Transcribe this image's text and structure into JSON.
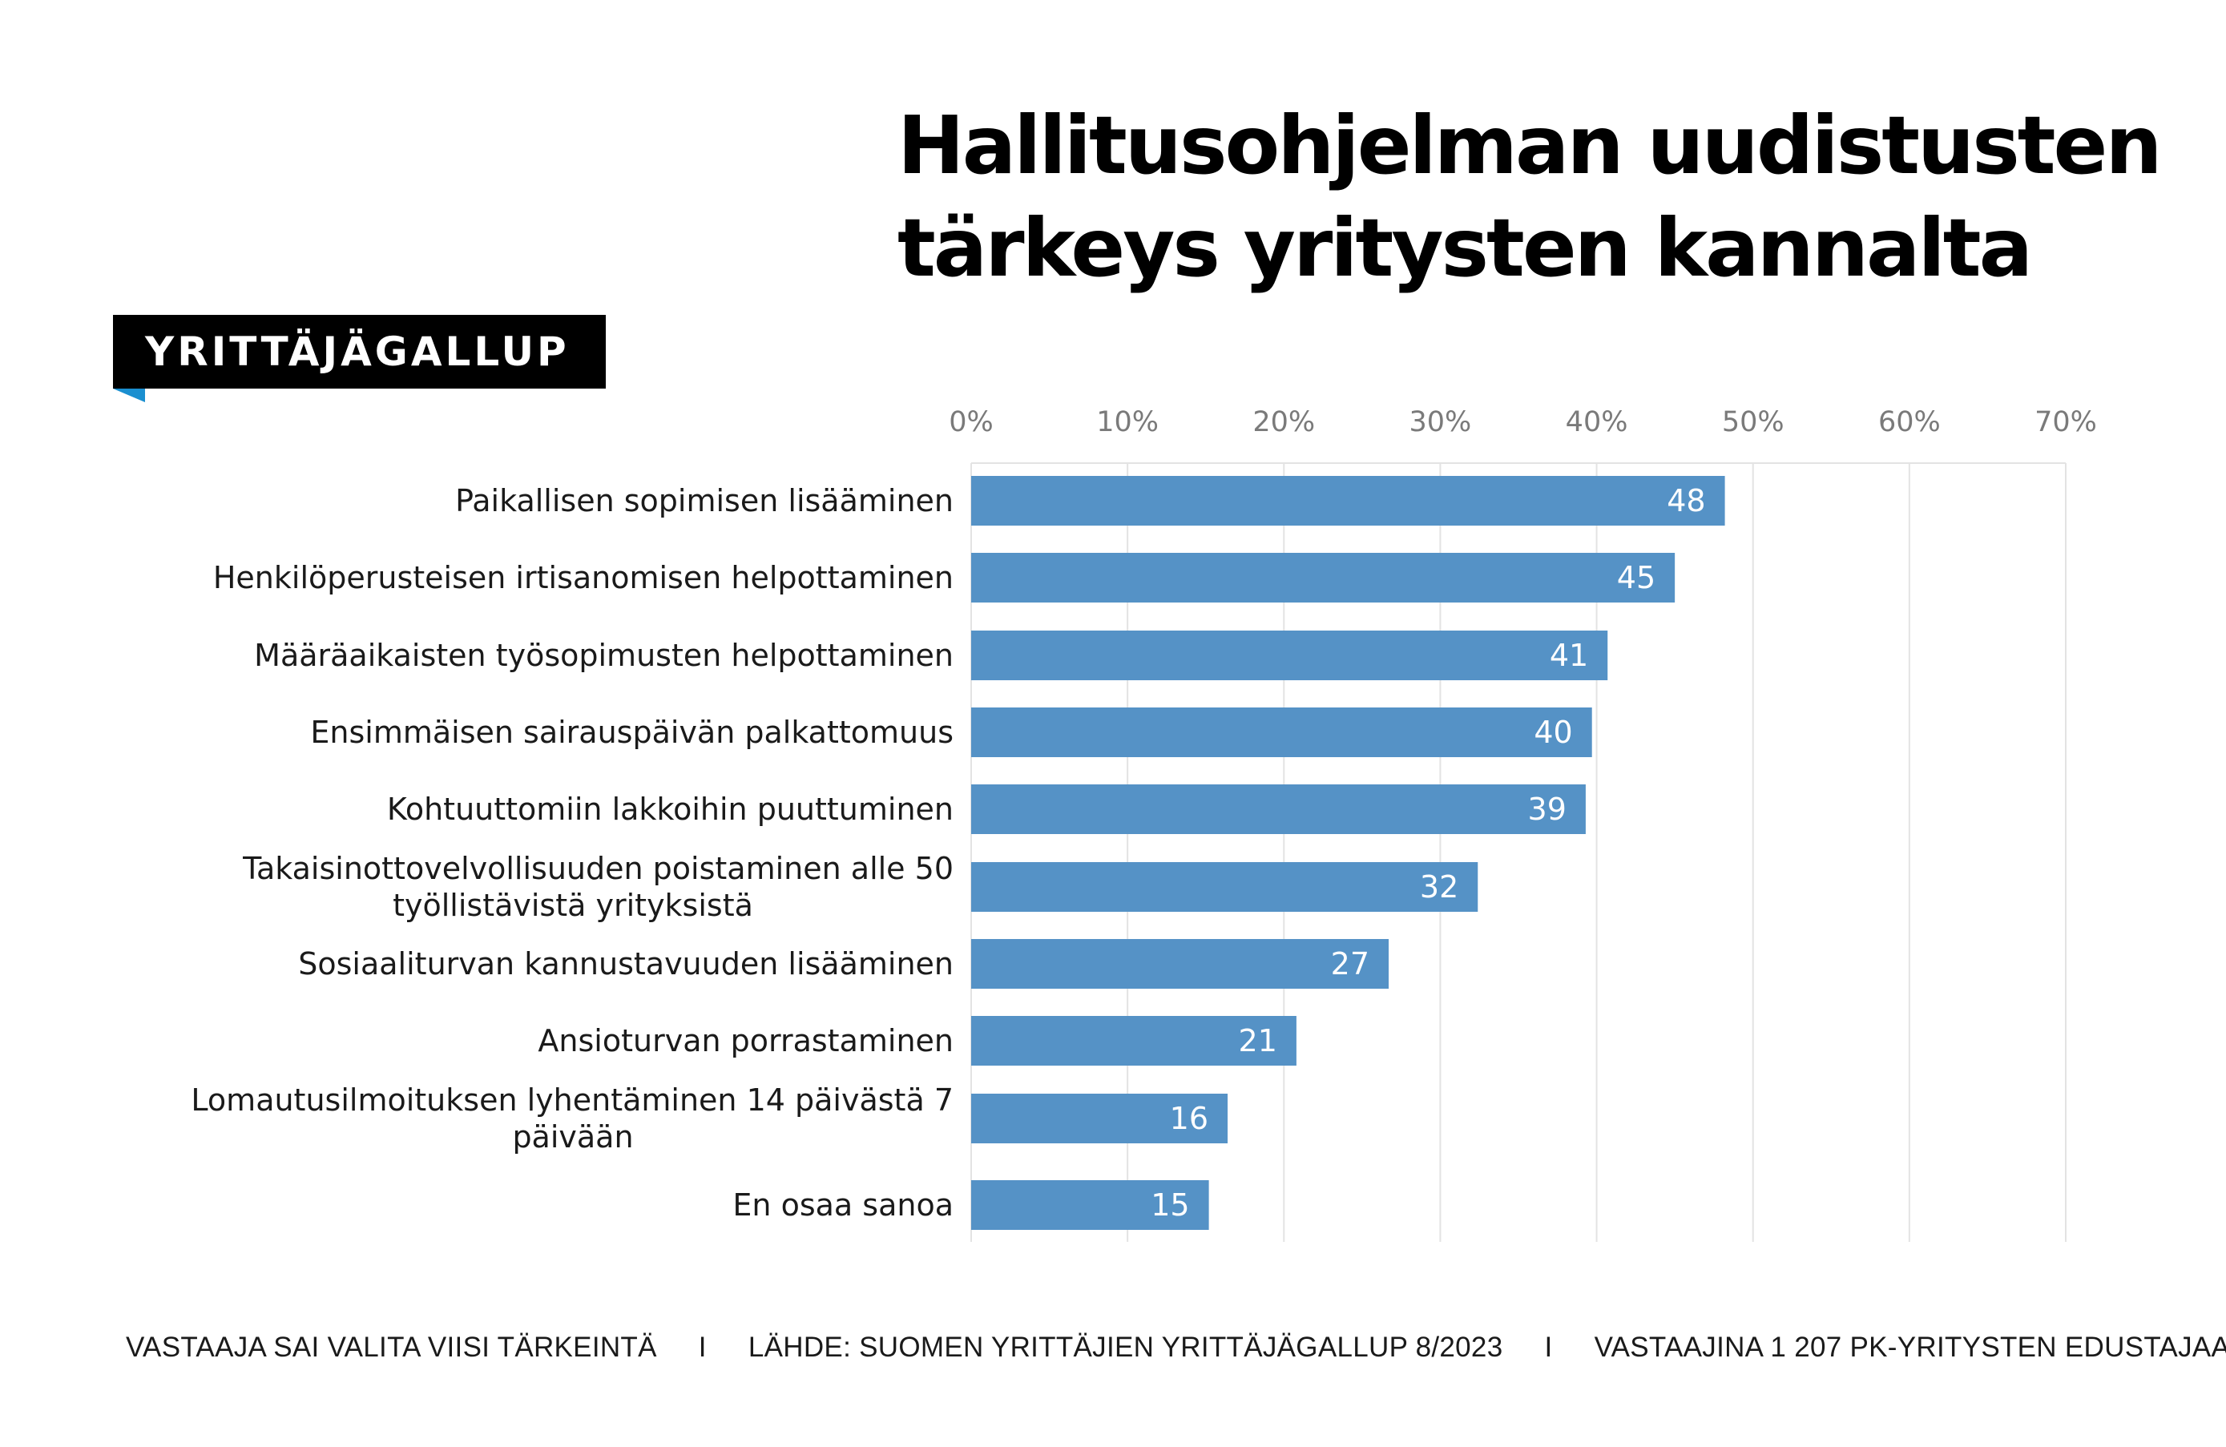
{
  "header": {
    "title_line1": "Hallitusohjelman uudistusten",
    "title_line2": "tärkeys yritysten kannalta",
    "badge": "YRITTÄJÄGALLUP"
  },
  "colors": {
    "bar": "#5592c6",
    "badge_bg": "#000000",
    "badge_corner": "#1a8fd0"
  },
  "chart_data": {
    "type": "bar",
    "orientation": "horizontal",
    "title": "Hallitusohjelman uudistusten tärkeys yritysten kannalta",
    "xlim": [
      0,
      70
    ],
    "ticks": [
      0,
      10,
      20,
      30,
      40,
      50,
      60,
      70
    ],
    "tick_labels": [
      "0%",
      "10%",
      "20%",
      "30%",
      "40%",
      "50%",
      "60%",
      "70%"
    ],
    "categories": [
      [
        "Paikallisen sopimisen lisääminen"
      ],
      [
        "Henkilöperusteisen irtisanomisen helpottaminen"
      ],
      [
        "Määräaikaisten työsopimusten helpottaminen"
      ],
      [
        "Ensimmäisen sairauspäivän palkattomuus"
      ],
      [
        "Kohtuuttomiin lakkoihin puuttuminen"
      ],
      [
        "Takaisinottovelvollisuuden poistaminen alle 50",
        "työllistävistä yrityksistä"
      ],
      [
        "Sosiaaliturvan kannustavuuden lisääminen"
      ],
      [
        "Ansioturvan porrastaminen"
      ],
      [
        "Lomautusilmoituksen lyhentäminen 14 päivästä 7",
        "päivään"
      ],
      [
        "En osaa sanoa"
      ]
    ],
    "values": [
      48.2,
      45.0,
      40.7,
      39.7,
      39.3,
      32.4,
      26.7,
      20.8,
      16.4,
      15.2
    ],
    "data_labels": [
      "48",
      "45",
      "41",
      "40",
      "39",
      "32",
      "27",
      "21",
      "16",
      "15"
    ],
    "grid": true,
    "legend": "none"
  },
  "footer": {
    "note": "VASTAAJA SAI VALITA VIISI TÄRKEINTÄ",
    "separator": "I",
    "source": "LÄHDE: SUOMEN YRITTÄJIEN YRITTÄJÄGALLUP 8/2023",
    "respondents": "VASTAAJINA 1 207 PK-YRITYSTEN EDUSTAJAA"
  }
}
